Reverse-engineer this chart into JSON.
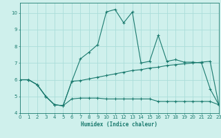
{
  "xlabel": "Humidex (Indice chaleur)",
  "bg_color": "#cff0ec",
  "grid_color": "#aaddda",
  "line_color": "#1a7a6e",
  "xlim": [
    0,
    23
  ],
  "ylim": [
    4,
    10.6
  ],
  "yticks": [
    4,
    5,
    6,
    7,
    8,
    9,
    10
  ],
  "xticks": [
    0,
    1,
    2,
    3,
    4,
    5,
    6,
    7,
    8,
    9,
    10,
    11,
    12,
    13,
    14,
    15,
    16,
    17,
    18,
    19,
    20,
    21,
    22,
    23
  ],
  "line1_x": [
    0,
    1,
    2,
    3,
    4,
    5,
    6,
    7,
    8,
    9,
    10,
    11,
    12,
    13,
    14,
    15,
    16,
    17,
    18,
    19,
    20,
    21,
    22,
    23
  ],
  "line1_y": [
    6.0,
    6.0,
    5.7,
    5.0,
    4.5,
    4.45,
    4.85,
    4.9,
    4.9,
    4.9,
    4.85,
    4.85,
    4.85,
    4.85,
    4.85,
    4.85,
    4.7,
    4.7,
    4.7,
    4.7,
    4.7,
    4.7,
    4.7,
    4.5
  ],
  "line2_x": [
    0,
    1,
    2,
    3,
    4,
    5,
    6,
    7,
    8,
    9,
    10,
    11,
    12,
    13,
    14,
    15,
    16,
    17,
    18,
    19,
    20,
    21,
    22,
    23
  ],
  "line2_y": [
    6.0,
    6.0,
    5.7,
    5.0,
    4.5,
    4.45,
    5.9,
    5.95,
    6.05,
    6.15,
    6.25,
    6.35,
    6.45,
    6.55,
    6.6,
    6.7,
    6.75,
    6.85,
    6.9,
    6.95,
    7.0,
    7.05,
    7.1,
    4.5
  ],
  "line3_x": [
    0,
    1,
    2,
    3,
    4,
    5,
    6,
    7,
    8,
    9,
    10,
    11,
    12,
    13,
    14,
    15,
    16,
    17,
    18,
    19,
    20,
    21,
    22,
    23
  ],
  "line3_y": [
    6.0,
    6.0,
    5.7,
    5.0,
    4.5,
    4.45,
    5.9,
    7.25,
    7.65,
    8.1,
    10.05,
    10.2,
    9.4,
    10.05,
    7.0,
    7.1,
    8.65,
    7.1,
    7.2,
    7.05,
    7.05,
    7.0,
    5.45,
    4.5
  ]
}
